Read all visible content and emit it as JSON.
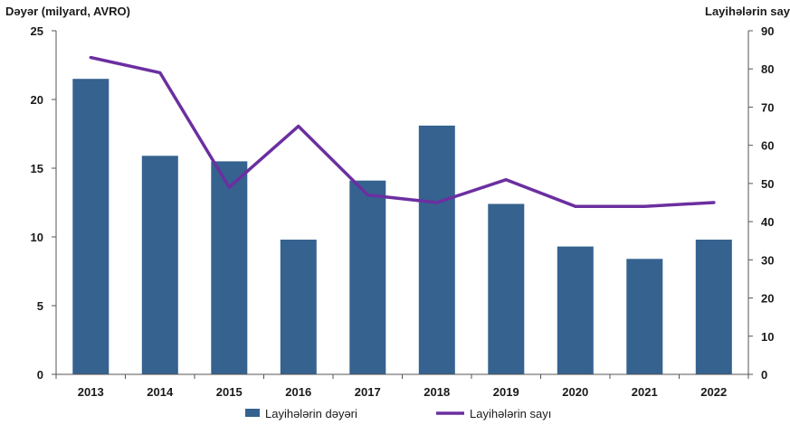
{
  "chart_data": {
    "type": "bar+line",
    "categories": [
      "2013",
      "2014",
      "2015",
      "2016",
      "2017",
      "2018",
      "2019",
      "2020",
      "2021",
      "2022"
    ],
    "series": [
      {
        "name": "Layihələrin dəyəri",
        "type": "bar",
        "axis": "left",
        "color": "#35628F",
        "values": [
          21.5,
          15.9,
          15.5,
          9.8,
          14.1,
          18.1,
          12.4,
          9.3,
          8.4,
          9.8
        ]
      },
      {
        "name": "Layihələrin sayı",
        "type": "line",
        "axis": "right",
        "color": "#6B2FA0",
        "values": [
          83,
          79,
          49,
          65,
          47,
          45,
          51,
          44,
          44,
          45
        ]
      }
    ],
    "ylabel_left": "Dəyər (milyard, AVRO)",
    "ylabel_right": "Layihələrin sayı",
    "ylim_left": [
      0,
      25
    ],
    "ylim_right": [
      0,
      90
    ],
    "yticks_left": [
      "0",
      "5",
      "10",
      "15",
      "20",
      "25"
    ],
    "yticks_right": [
      "0",
      "10",
      "20",
      "30",
      "40",
      "50",
      "60",
      "70",
      "80",
      "90"
    ],
    "grid": false,
    "legend_position": "bottom"
  }
}
